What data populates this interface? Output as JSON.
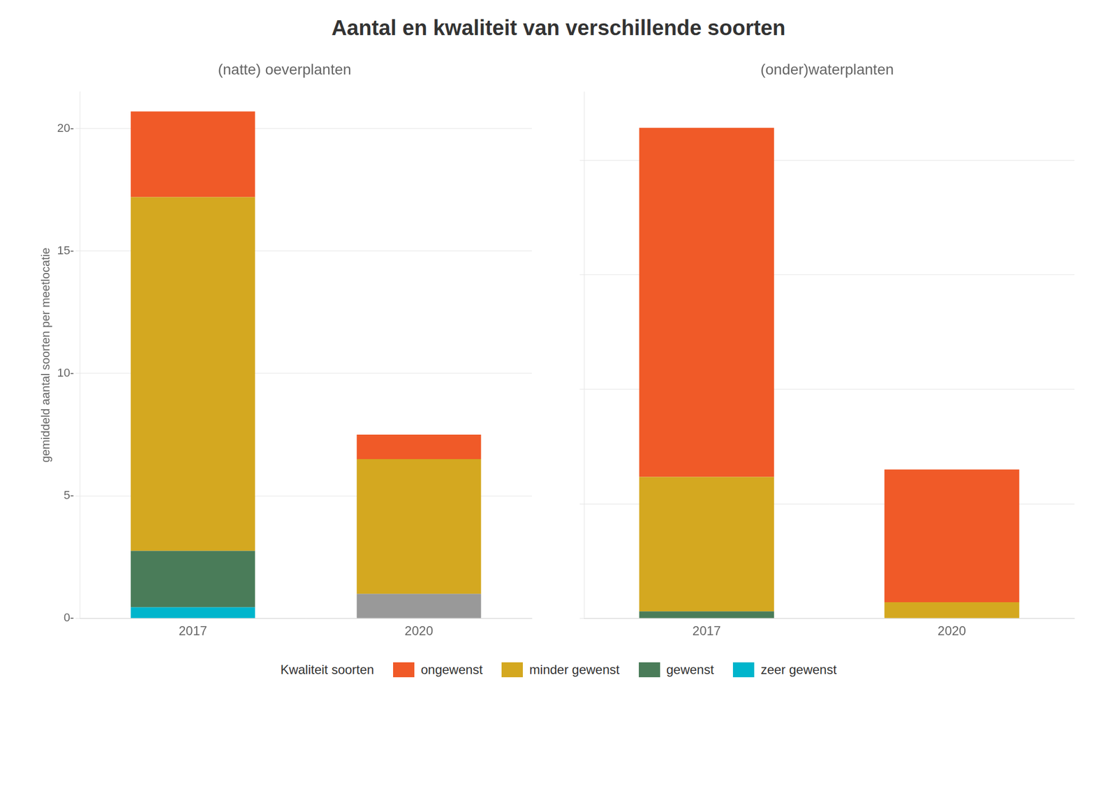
{
  "title": "Aantal en kwaliteit van verschillende soorten",
  "legend_title": "Kwaliteit soorten",
  "legend": "bottom",
  "chart_data": [
    {
      "type": "bar",
      "title": "(natte) oeverplanten",
      "ylabel": "gemiddeld aantal soorten per meetlocatie",
      "stacked": true,
      "grid": true,
      "categories": [
        "2017",
        "2020"
      ],
      "series": [
        {
          "name": "zeer gewenst",
          "color": "#00B5CC",
          "values": [
            0.45,
            null
          ]
        },
        {
          "name": "gewenst",
          "color": "#4A7C59",
          "values": [
            2.3,
            null
          ]
        },
        {
          "color": "#999999",
          "values": [
            null,
            1.0
          ]
        },
        {
          "name": "minder gewenst",
          "color": "#D4A820",
          "values": [
            14.45,
            5.5
          ]
        },
        {
          "name": "ongewenst",
          "color": "#F05A28",
          "values": [
            3.5,
            1.0
          ]
        }
      ],
      "ylim": [
        0,
        21.5
      ],
      "yticks": [
        {
          "value": 0,
          "label": "0-"
        },
        {
          "value": 5,
          "label": "5-"
        },
        {
          "value": 10,
          "label": "10-"
        },
        {
          "value": 15,
          "label": "15-"
        },
        {
          "value": 20,
          "label": "20-"
        }
      ]
    },
    {
      "type": "bar",
      "title": "(onder)waterplanten",
      "stacked": true,
      "grid": true,
      "tick_labels": "x",
      "categories": [
        "2017",
        "2020"
      ],
      "series": [
        {
          "name": "gewenst",
          "color": "#4A7C59",
          "values": [
            0.12,
            null
          ]
        },
        {
          "name": "minder gewenst",
          "color": "#D4A820",
          "values": [
            2.35,
            0.28
          ]
        },
        {
          "name": "ongewenst",
          "color": "#F05A28",
          "values": [
            6.1,
            2.32
          ]
        }
      ],
      "ylim": [
        0,
        9.2
      ],
      "yticks": [
        0,
        2,
        4,
        6,
        8
      ]
    }
  ]
}
